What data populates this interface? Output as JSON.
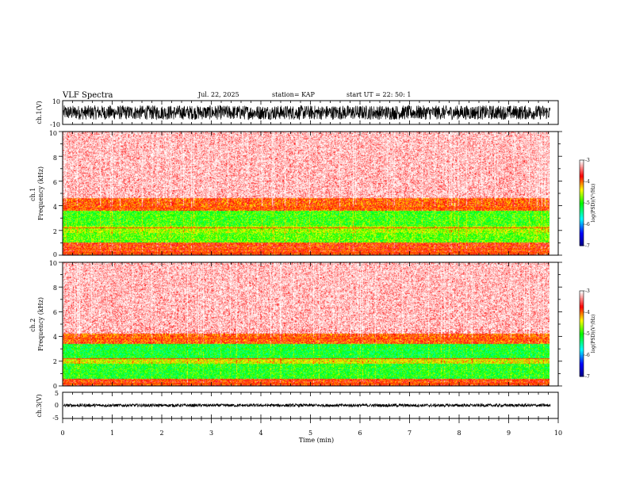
{
  "header": {
    "title": "VLF Spectra",
    "date": "Jul. 22, 2025",
    "station": "station= KAP",
    "start": "start UT =  22: 50: 1"
  },
  "chart_data": [
    {
      "id": "ch1-waveform",
      "type": "line",
      "ylabel": "ch.1(V)",
      "ylim": [
        -10,
        10
      ],
      "y_ticks": [
        "10",
        "-10"
      ],
      "signal_range": [
        -6,
        6
      ]
    },
    {
      "id": "ch1-spectrogram",
      "type": "heatmap",
      "ylabel": "ch.1\nFrequency (kHz)",
      "ylim": [
        0,
        10
      ],
      "y_ticks": [
        "0",
        "2",
        "4",
        "6",
        "8",
        "10"
      ],
      "bands": [
        {
          "from": 0.0,
          "to": 1.0,
          "level": -3.8
        },
        {
          "from": 1.0,
          "to": 1.8,
          "level": -4.8
        },
        {
          "from": 1.8,
          "to": 2.4,
          "level": -4.6
        },
        {
          "from": 2.4,
          "to": 3.6,
          "level": -4.9
        },
        {
          "from": 3.6,
          "to": 4.6,
          "level": -3.9
        },
        {
          "from": 4.6,
          "to": 10.0,
          "level": -3.2
        }
      ],
      "colorbar": {
        "label": "log(PSD)(V²/Hz)",
        "range": [
          -7,
          -3
        ],
        "ticks": [
          "-3",
          "-4",
          "-5",
          "-6",
          "-7"
        ]
      }
    },
    {
      "id": "ch2-spectrogram",
      "type": "heatmap",
      "ylabel": "ch.2\nFrequency (kHz)",
      "ylim": [
        0,
        10
      ],
      "y_ticks": [
        "0",
        "2",
        "4",
        "6",
        "8",
        "10"
      ],
      "bands": [
        {
          "from": 0.0,
          "to": 0.6,
          "level": -3.8
        },
        {
          "from": 0.6,
          "to": 1.8,
          "level": -5.0
        },
        {
          "from": 1.8,
          "to": 2.2,
          "level": -4.4
        },
        {
          "from": 2.2,
          "to": 3.4,
          "level": -5.1
        },
        {
          "from": 3.4,
          "to": 4.2,
          "level": -3.9
        },
        {
          "from": 4.2,
          "to": 10.0,
          "level": -3.2
        }
      ],
      "colorbar": {
        "label": "log(PSD)(V²/Hz)",
        "range": [
          -7,
          -3
        ],
        "ticks": [
          "-3",
          "-4",
          "-5",
          "-6",
          "-7"
        ]
      }
    },
    {
      "id": "ch3-waveform",
      "type": "line",
      "ylabel": "ch.3(V)",
      "ylim": [
        -5,
        5
      ],
      "y_ticks": [
        "5",
        "0",
        "-5"
      ],
      "signal_range": [
        -0.6,
        0.6
      ]
    }
  ],
  "x_axis": {
    "label": "Time (min)",
    "range": [
      0,
      10
    ],
    "ticks": [
      "0",
      "1",
      "2",
      "3",
      "4",
      "5",
      "6",
      "7",
      "8",
      "9",
      "10"
    ],
    "data_end": 9.83
  },
  "colors": {
    "palette": [
      "#000080",
      "#0000ff",
      "#00ffff",
      "#00ff00",
      "#ffff00",
      "#ff0000",
      "#ffffff"
    ]
  }
}
